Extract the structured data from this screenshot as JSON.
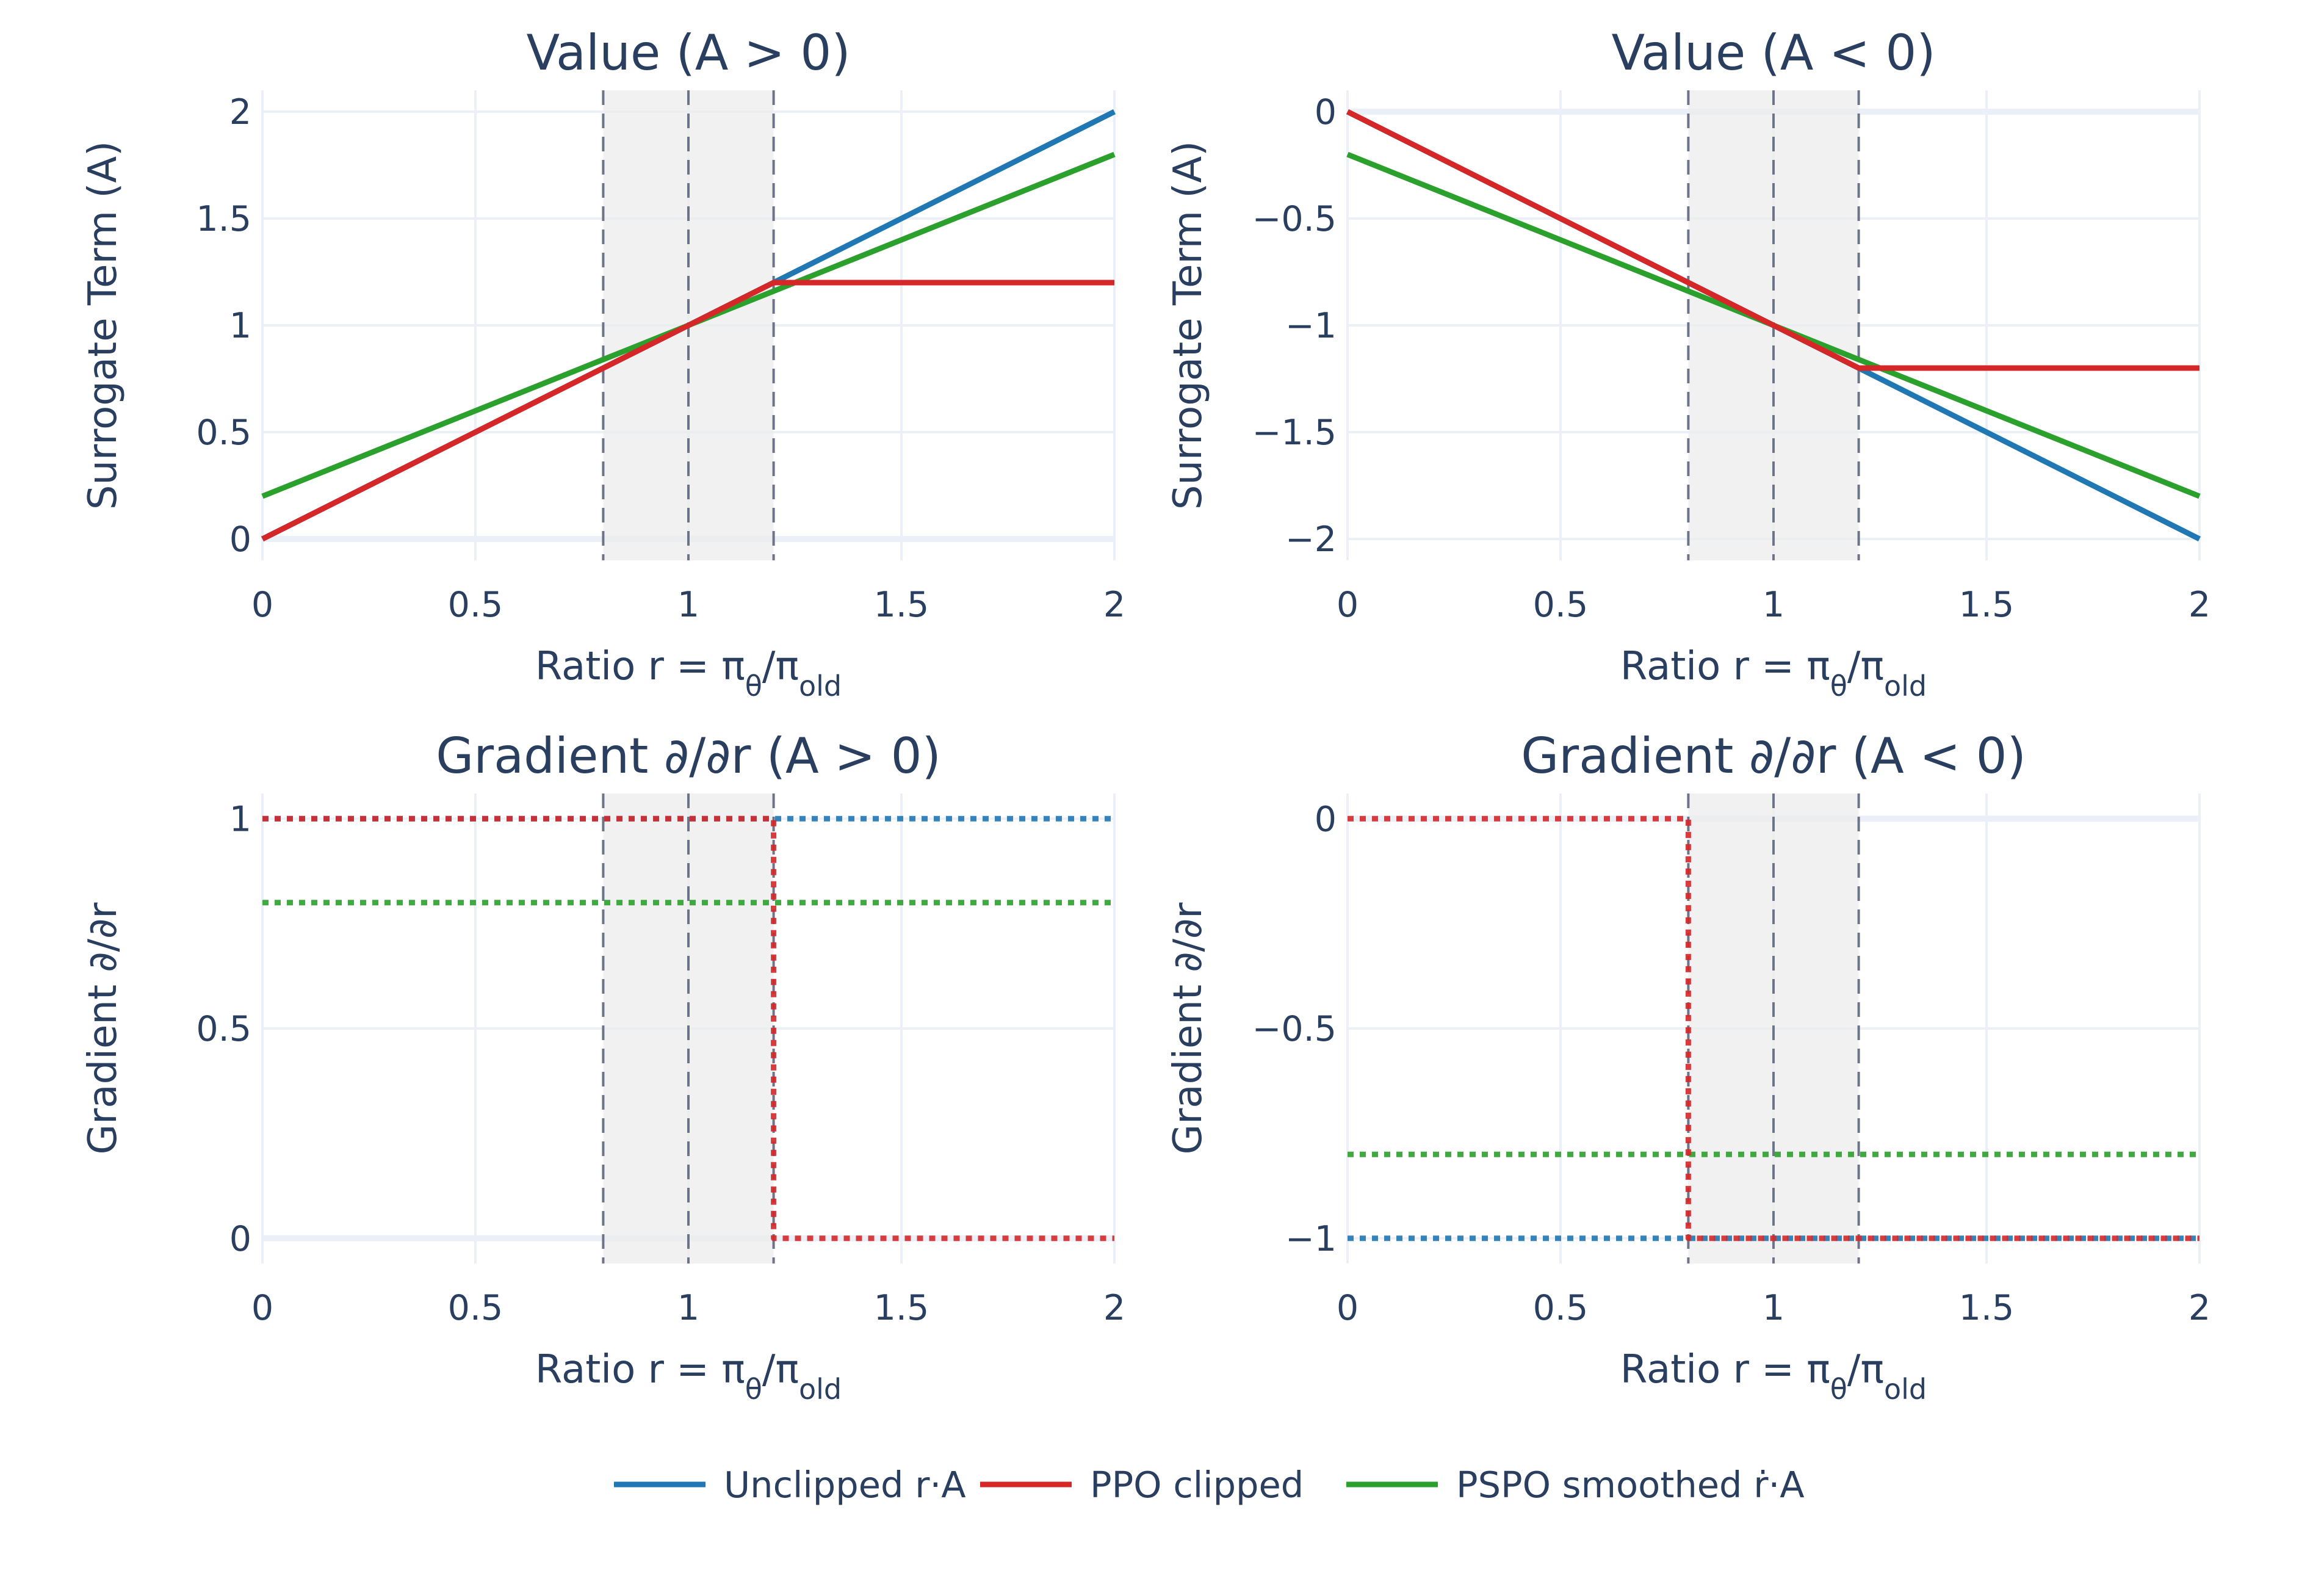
{
  "colors": {
    "unclipped": "#1f77b4",
    "ppo": "#d62728",
    "pspo": "#2ca02c",
    "text": "#2a3f5f",
    "grid": "#ebf0f8",
    "band": "#ececec",
    "vline": "#6b7489"
  },
  "legend": {
    "placement": "bottom-center",
    "items": [
      {
        "key": "unclipped",
        "label": "Unclipped r·A"
      },
      {
        "key": "ppo",
        "label": "PPO clipped"
      },
      {
        "key": "pspo",
        "label": "PSPO smoothed ṙ·A"
      }
    ]
  },
  "chart_data": [
    {
      "type": "line",
      "title": "Value (A > 0)",
      "xlabel": "Ratio r = πθ/πold",
      "ylabel": "Surrogate Term (A)",
      "xlim": [
        0,
        2
      ],
      "ylim": [
        -0.1,
        2.1
      ],
      "xticks": [
        0,
        0.5,
        1,
        1.5,
        2
      ],
      "xticklabels": [
        "0",
        "0.5",
        "1",
        "1.5",
        "2"
      ],
      "yticks": [
        0,
        0.5,
        1,
        1.5,
        2
      ],
      "yticklabels": [
        "0",
        "0.5",
        "1",
        "1.5",
        "2"
      ],
      "grid": true,
      "shaded_region": [
        0.8,
        1.2
      ],
      "vertical_lines": [
        0.8,
        1,
        1.2
      ],
      "series": [
        {
          "key": "unclipped",
          "dash": "solid",
          "x": [
            0,
            2
          ],
          "y": [
            0,
            2
          ]
        },
        {
          "key": "pspo",
          "dash": "solid",
          "x": [
            0,
            2
          ],
          "y": [
            0.2,
            1.8
          ]
        },
        {
          "key": "ppo",
          "dash": "solid",
          "x": [
            0,
            1.2,
            2
          ],
          "y": [
            0,
            1.2,
            1.2
          ]
        }
      ]
    },
    {
      "type": "line",
      "title": "Value (A < 0)",
      "xlabel": "Ratio r = πθ/πold",
      "ylabel": "Surrogate Term (A)",
      "xlim": [
        0,
        2
      ],
      "ylim": [
        -2.1,
        0.1
      ],
      "xticks": [
        0,
        0.5,
        1,
        1.5,
        2
      ],
      "xticklabels": [
        "0",
        "0.5",
        "1",
        "1.5",
        "2"
      ],
      "yticks": [
        0,
        -0.5,
        -1,
        -1.5,
        -2
      ],
      "yticklabels": [
        "0",
        "−0.5",
        "−1",
        "−1.5",
        "−2"
      ],
      "grid": true,
      "shaded_region": [
        0.8,
        1.2
      ],
      "vertical_lines": [
        0.8,
        1,
        1.2
      ],
      "series": [
        {
          "key": "unclipped",
          "dash": "solid",
          "x": [
            0,
            2
          ],
          "y": [
            0,
            -2
          ]
        },
        {
          "key": "pspo",
          "dash": "solid",
          "x": [
            0,
            2
          ],
          "y": [
            -0.2,
            -1.8
          ]
        },
        {
          "key": "ppo",
          "dash": "solid",
          "x": [
            0,
            1.2,
            2
          ],
          "y": [
            0,
            -1.2,
            -1.2
          ]
        }
      ]
    },
    {
      "type": "line",
      "title": "Gradient ∂/∂r (A > 0)",
      "xlabel": "Ratio r = πθ/πold",
      "ylabel": "Gradient ∂/∂r",
      "xlim": [
        0,
        2
      ],
      "ylim": [
        -0.06,
        1.06
      ],
      "xticks": [
        0,
        0.5,
        1,
        1.5,
        2
      ],
      "xticklabels": [
        "0",
        "0.5",
        "1",
        "1.5",
        "2"
      ],
      "yticks": [
        0,
        0.5,
        1
      ],
      "yticklabels": [
        "0",
        "0.5",
        "1"
      ],
      "grid": true,
      "shaded_region": [
        0.8,
        1.2
      ],
      "vertical_lines": [
        0.8,
        1,
        1.2
      ],
      "series": [
        {
          "key": "unclipped",
          "dash": "dot",
          "x": [
            0,
            2
          ],
          "y": [
            1,
            1
          ]
        },
        {
          "key": "pspo",
          "dash": "dot",
          "x": [
            0,
            2
          ],
          "y": [
            0.8,
            0.8
          ]
        },
        {
          "key": "ppo",
          "dash": "dot",
          "x": [
            0,
            1.2,
            1.2,
            2
          ],
          "y": [
            1,
            1,
            0,
            0
          ]
        }
      ]
    },
    {
      "type": "line",
      "title": "Gradient ∂/∂r (A < 0)",
      "xlabel": "Ratio r = πθ/πold",
      "ylabel": "Gradient ∂/∂r",
      "xlim": [
        0,
        2
      ],
      "ylim": [
        -1.06,
        0.06
      ],
      "xticks": [
        0,
        0.5,
        1,
        1.5,
        2
      ],
      "xticklabels": [
        "0",
        "0.5",
        "1",
        "1.5",
        "2"
      ],
      "yticks": [
        0,
        -0.5,
        -1
      ],
      "yticklabels": [
        "0",
        "−0.5",
        "−1"
      ],
      "grid": true,
      "shaded_region": [
        0.8,
        1.2
      ],
      "vertical_lines": [
        0.8,
        1,
        1.2
      ],
      "series": [
        {
          "key": "unclipped",
          "dash": "dot",
          "x": [
            0,
            2
          ],
          "y": [
            -1,
            -1
          ]
        },
        {
          "key": "pspo",
          "dash": "dot",
          "x": [
            0,
            2
          ],
          "y": [
            -0.8,
            -0.8
          ]
        },
        {
          "key": "ppo",
          "dash": "dot",
          "x": [
            0,
            0.8,
            0.8,
            2
          ],
          "y": [
            0,
            0,
            -1,
            -1
          ]
        }
      ]
    }
  ]
}
